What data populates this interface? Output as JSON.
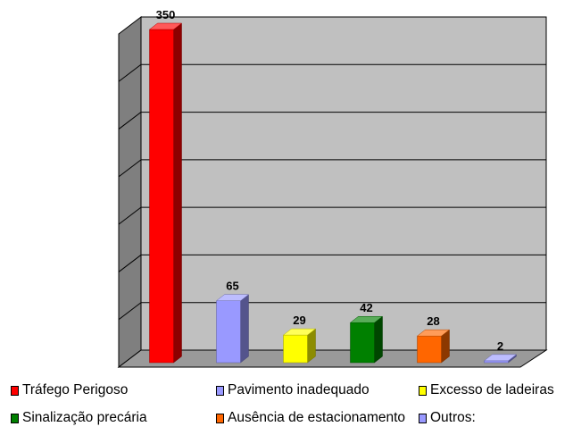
{
  "chart_data": {
    "type": "bar",
    "title": "",
    "xlabel": "",
    "ylabel": "",
    "categories": [
      "Tráfego Perigoso",
      "Pavimento inadequado",
      "Excesso de ladeiras",
      "Sinalização precária",
      "Ausência de estacionamento",
      "Outros:"
    ],
    "values": [
      350,
      65,
      29,
      42,
      28,
      2
    ],
    "data_labels": [
      "350",
      "65",
      "29",
      "42",
      "28",
      "2"
    ],
    "colors": [
      "#ff0000",
      "#9999ff",
      "#ffff00",
      "#008000",
      "#ff6600",
      "#9999ff"
    ],
    "ylim": [
      0,
      350
    ],
    "gridlines": 7,
    "grid": true,
    "legend_position": "bottom",
    "style": "3d-column",
    "wall_color": "#c0c0c0"
  }
}
